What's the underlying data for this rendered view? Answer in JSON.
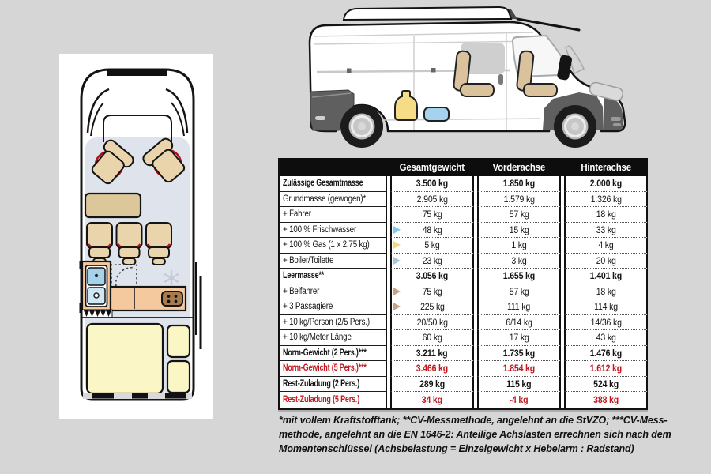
{
  "colors": {
    "page_bg": "#d6d6d6",
    "table_header_bg": "#0d0d0d",
    "accent_red": "#c0181f",
    "marker_water": "#82c7ec",
    "marker_gas": "#f4d678",
    "marker_boiler": "#a9c7d9",
    "marker_person": "#c6a386"
  },
  "floorplan": {
    "icons": [
      "swivel-seat-icon",
      "dinette-table-icon",
      "bench-seat-icon",
      "bathroom-icon",
      "shower-icon",
      "kitchen-counter-icon",
      "stove-icon",
      "fridge-snowflake-icon",
      "bed-icon",
      "cushion-icon",
      "entry-step-icon",
      "sliding-door-rail-icon"
    ]
  },
  "van": {
    "icons": [
      "roof-cap",
      "rear-bumper-icon",
      "front-bumper-icon",
      "headlight-icon",
      "mirror-icon",
      "cab-seat-icon",
      "mid-seat-icon",
      "gas-bottle-icon",
      "water-tank-icon",
      "wheel-icon",
      "door-handle-icon"
    ]
  },
  "table": {
    "headers": [
      "",
      "Gesamtgewicht",
      "Vorderachse",
      "Hinterachse"
    ],
    "rows": [
      {
        "label": "Zulässige Gesamtmasse",
        "values": [
          "3.500 kg",
          "1.850 kg",
          "2.000 kg"
        ],
        "bold": true
      },
      {
        "label": "Grundmasse (gewogen)*",
        "values": [
          "2.905 kg",
          "1.579 kg",
          "1.326 kg"
        ]
      },
      {
        "label": "+ Fahrer",
        "values": [
          "75 kg",
          "57 kg",
          "18 kg"
        ]
      },
      {
        "label": "+ 100 % Frischwasser",
        "values": [
          "48 kg",
          "15 kg",
          "33 kg"
        ],
        "marker": "marker_water"
      },
      {
        "label": "+ 100 % Gas (1 x 2,75 kg)",
        "values": [
          "5 kg",
          "1 kg",
          "4 kg"
        ],
        "marker": "marker_gas"
      },
      {
        "label": "+ Boiler/Toilette",
        "values": [
          "23 kg",
          "3 kg",
          "20 kg"
        ],
        "marker": "marker_boiler"
      },
      {
        "label": "Leermasse**",
        "values": [
          "3.056 kg",
          "1.655 kg",
          "1.401 kg"
        ],
        "bold": true
      },
      {
        "label": "+ Beifahrer",
        "values": [
          "75 kg",
          "57 kg",
          "18 kg"
        ],
        "marker": "marker_person"
      },
      {
        "label": "+ 3 Passagiere",
        "values": [
          "225 kg",
          "111 kg",
          "114 kg"
        ],
        "marker": "marker_person"
      },
      {
        "label": "+ 10 kg/Person (2/5 Pers.)",
        "values": [
          "20/50 kg",
          "6/14 kg",
          "14/36 kg"
        ]
      },
      {
        "label": "+ 10 kg/Meter Länge",
        "values": [
          "60 kg",
          "17 kg",
          "43 kg"
        ]
      },
      {
        "label": "Norm-Gewicht (2 Pers.)***",
        "values": [
          "3.211 kg",
          "1.735 kg",
          "1.476 kg"
        ],
        "bold": true
      },
      {
        "label": "Norm-Gewicht (5 Pers.)***",
        "values": [
          "3.466 kg",
          "1.854 kg",
          "1.612 kg"
        ],
        "bold": true,
        "red": true
      },
      {
        "label": "Rest-Zuladung (2 Pers.)",
        "values": [
          "289 kg",
          "115 kg",
          "524 kg"
        ],
        "bold": true
      },
      {
        "label": "Rest-Zuladung (5 Pers.)",
        "values": [
          "34 kg",
          "-4 kg",
          "388 kg"
        ],
        "bold": true,
        "red": true
      }
    ]
  },
  "footnote": {
    "lines": [
      "*mit vollem Kraftstofftank; **CV-Messmethode, angelehnt an die StVZO; ***CV-Mess-",
      "methode, angelehnt an die EN 1646-2: Anteilige Achslasten errechnen sich nach dem",
      "Momentenschlüssel (Achsbelastung = Einzelgewicht x Hebelarm : Radstand)"
    ]
  }
}
